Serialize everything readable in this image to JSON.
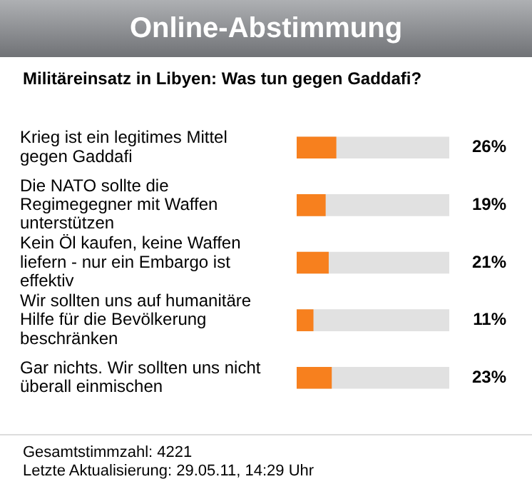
{
  "chart_data": {
    "type": "bar",
    "title": "Online-Abstimmung",
    "subtitle": "Militäreinsatz in Libyen: Was tun gegen Gaddafi?",
    "orientation": "horizontal",
    "categories": [
      "Krieg ist ein legitimes Mittel gegen Gaddafi",
      "Die NATO sollte die Regimegegner mit Waffen unterstützen",
      "Kein Öl kaufen, keine Waffen liefern - nur ein Embargo ist effektiv",
      "Wir sollten uns auf humanitäre Hilfe für die Bevölkerung beschränken",
      "Gar nichts. Wir sollten uns nicht überall einmischen"
    ],
    "values": [
      26,
      19,
      21,
      11,
      23
    ],
    "value_labels": [
      "26%",
      "19%",
      "21%",
      "11%",
      "23%"
    ],
    "color": "#f7801e",
    "xlim": [
      0,
      100
    ],
    "tick_labels": "y",
    "annotations": [
      "Gesamtstimmzahl: 4221",
      "Letzte Aktualisierung: 29.05.11, 14:29 Uhr"
    ]
  }
}
